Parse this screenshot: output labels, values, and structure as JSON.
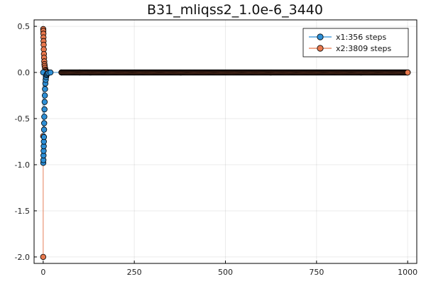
{
  "chart_data": {
    "type": "scatter",
    "title": "B31_mliqss2_1.0e-6_3440",
    "xlabel": "",
    "ylabel": "",
    "xlim": [
      -25,
      1025
    ],
    "ylim": [
      -2.07,
      0.57
    ],
    "x_ticks": [
      0,
      250,
      500,
      750,
      1000
    ],
    "x_tick_labels": [
      "0",
      "250",
      "500",
      "750",
      "1000"
    ],
    "y_ticks": [
      -2.0,
      -1.5,
      -1.0,
      -0.5,
      0.0,
      0.5
    ],
    "y_tick_labels": [
      "-2.0",
      "-1.5",
      "-1.0",
      "-0.5",
      "0.0",
      "0.5"
    ],
    "grid": true,
    "legend_position": "top-right",
    "series": [
      {
        "name": "x1:356 steps",
        "color": "#2e8fd6",
        "marker": "circle",
        "line": true,
        "x": [
          0.0,
          0.3,
          0.6,
          0.9,
          1.2,
          1.5,
          1.8,
          2.1,
          2.4,
          2.7,
          3.0,
          3.5,
          4.0,
          4.5,
          5.0,
          6.0,
          7.0,
          8.0,
          9.0,
          10.0,
          12.0,
          15.0,
          20.0,
          1000.0
        ],
        "y": [
          0.0,
          -0.98,
          -0.95,
          -0.9,
          -0.85,
          -0.8,
          -0.75,
          -0.7,
          -0.62,
          -0.55,
          -0.48,
          -0.4,
          -0.32,
          -0.25,
          -0.18,
          -0.12,
          -0.08,
          -0.05,
          -0.03,
          -0.02,
          -0.01,
          -0.005,
          0.0,
          0.0
        ]
      },
      {
        "name": "x2:3809 steps",
        "color": "#e8784d",
        "marker": "circle",
        "line": true,
        "x": [
          0.0,
          0.0,
          0.2,
          0.4,
          0.6,
          0.8,
          1.0,
          1.3,
          1.6,
          2.0,
          2.5,
          3.0,
          3.5,
          4.0,
          5.0,
          6.0,
          7.0,
          8.0,
          10.0,
          15.0,
          50.0,
          100.0,
          1000.0
        ],
        "y": [
          -2.0,
          -0.69,
          0.47,
          0.45,
          0.42,
          0.38,
          0.34,
          0.3,
          0.25,
          0.2,
          0.16,
          0.12,
          0.09,
          0.07,
          0.05,
          0.03,
          0.02,
          0.01,
          0.005,
          0.0,
          0.0,
          0.0,
          0.0
        ]
      }
    ]
  }
}
